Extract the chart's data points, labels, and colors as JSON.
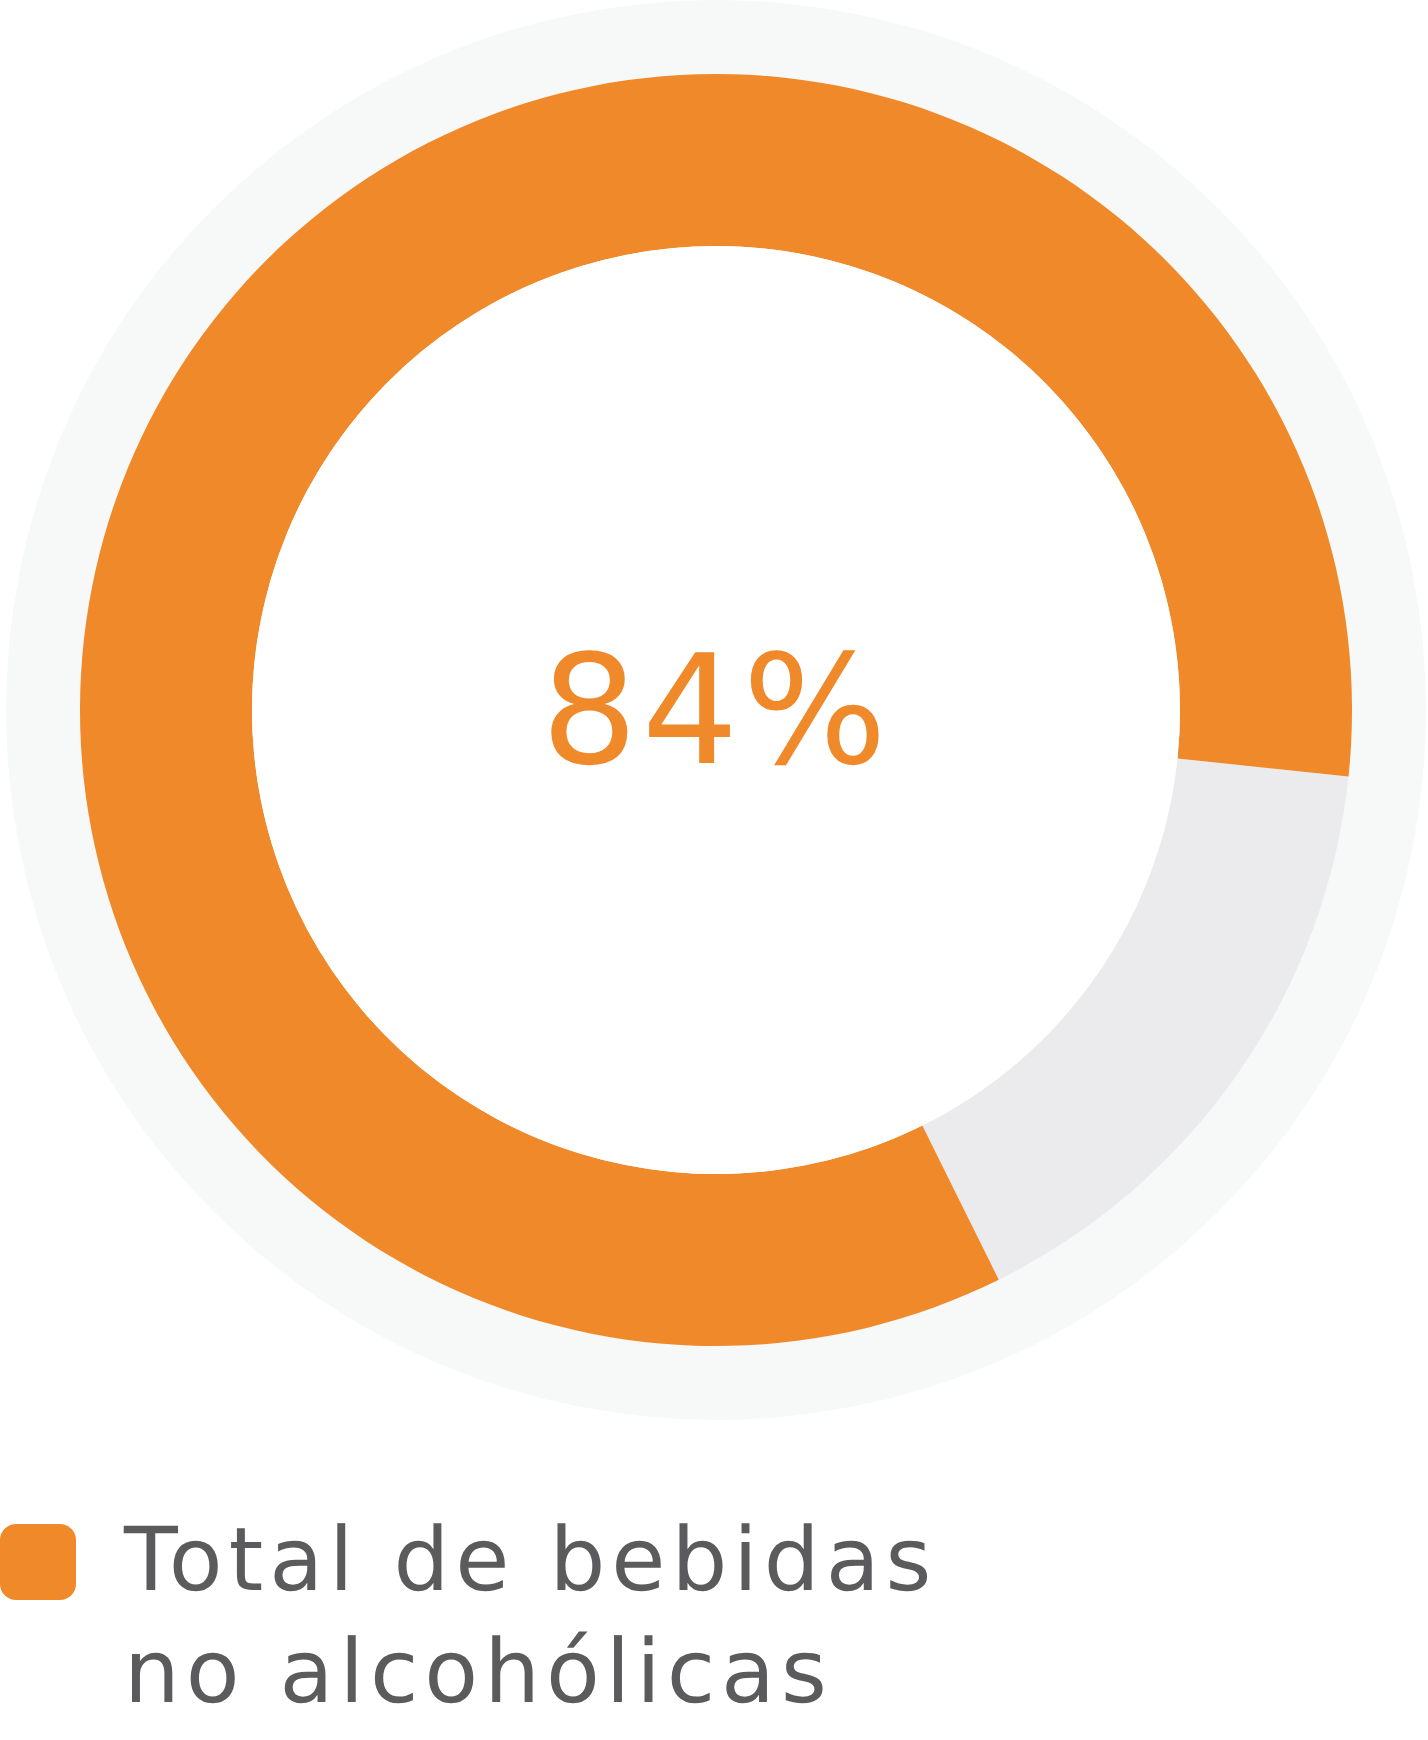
{
  "chart_data": {
    "type": "donut",
    "categories": [
      "Total de bebidas no alcohólicas",
      null
    ],
    "values": [
      84,
      16
    ],
    "colors": [
      "#f0892a",
      "#ebebee"
    ],
    "value_labels": [
      "84%",
      null
    ],
    "legend": "bottom"
  }
}
